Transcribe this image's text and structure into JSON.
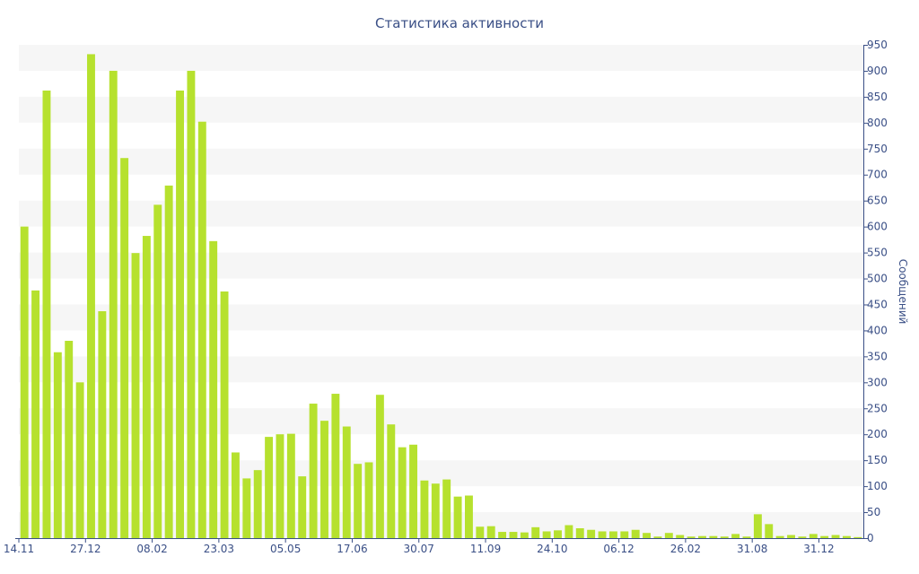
{
  "chart_data": {
    "type": "bar",
    "title": "Статистика активности",
    "ylabel": "Сообщений",
    "xlabel": "",
    "ylim": [
      0,
      950
    ],
    "yticks": [
      0,
      50,
      100,
      150,
      200,
      250,
      300,
      350,
      400,
      450,
      500,
      550,
      600,
      650,
      700,
      750,
      800,
      850,
      900,
      950
    ],
    "y_axis_position": "right",
    "grid": "alternating horizontal bands",
    "bar_color": "#b6e12e",
    "band_color": "#f6f6f6",
    "text_color": "#3a4f86",
    "x_tick_labels": [
      {
        "index": 0,
        "label": "14.11"
      },
      {
        "index": 6,
        "label": "27.12"
      },
      {
        "index": 12,
        "label": "08.02"
      },
      {
        "index": 18,
        "label": "23.03"
      },
      {
        "index": 24,
        "label": "05.05"
      },
      {
        "index": 30,
        "label": "17.06"
      },
      {
        "index": 36,
        "label": "30.07"
      },
      {
        "index": 42,
        "label": "11.09"
      },
      {
        "index": 48,
        "label": "24.10"
      },
      {
        "index": 54,
        "label": "06.12"
      },
      {
        "index": 60,
        "label": "26.02"
      },
      {
        "index": 66,
        "label": "31.08"
      },
      {
        "index": 72,
        "label": "31.12"
      }
    ],
    "values": [
      600,
      477,
      862,
      358,
      380,
      300,
      932,
      437,
      900,
      732,
      549,
      582,
      642,
      679,
      862,
      900,
      802,
      572,
      475,
      165,
      115,
      131,
      195,
      200,
      201,
      119,
      259,
      226,
      278,
      215,
      143,
      146,
      276,
      219,
      175,
      180,
      111,
      105,
      113,
      80,
      82,
      22,
      23,
      12,
      12,
      11,
      21,
      13,
      15,
      25,
      19,
      16,
      13,
      13,
      13,
      16,
      10,
      3,
      10,
      6,
      3,
      4,
      4,
      3,
      8,
      3,
      46,
      27,
      4,
      6,
      3,
      8,
      4,
      6,
      4,
      2
    ]
  }
}
